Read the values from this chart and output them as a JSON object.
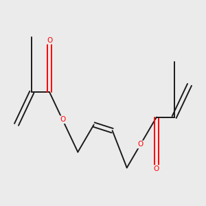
{
  "background_color": "#ebebeb",
  "bond_color": "#1a1a1a",
  "oxygen_color": "#ff0000",
  "bond_width": 1.4,
  "figsize": [
    3.0,
    3.0
  ],
  "dpi": 100,
  "xlim": [
    0,
    10
  ],
  "ylim": [
    0,
    10
  ]
}
